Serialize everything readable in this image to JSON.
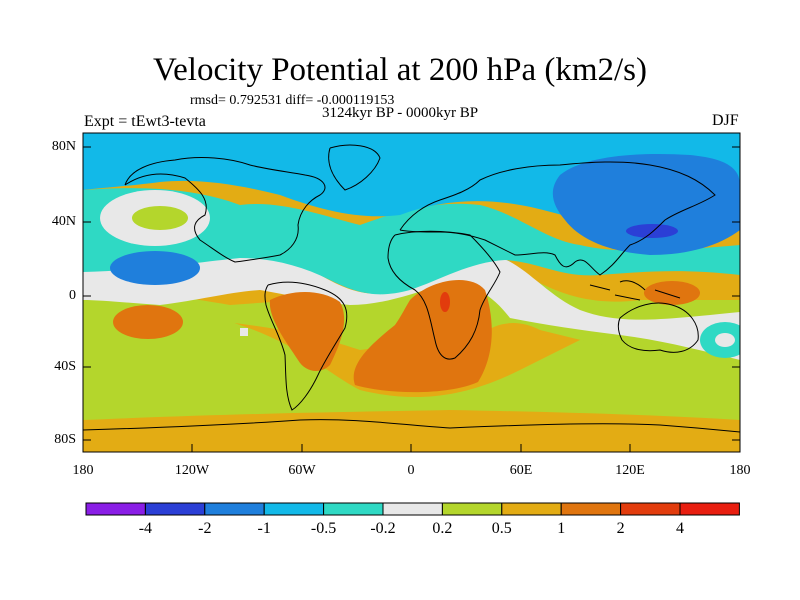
{
  "title": "Velocity Potential at 200 hPa (km2/s)",
  "rmsd_line": "rmsd= 0.792531 diff= -0.000119153",
  "period": "3124kyr BP - 0000kyr BP",
  "experiment": "Expt = tEwt3-tevta",
  "season": "DJF",
  "y_axis": {
    "labels": [
      "80N",
      "40N",
      "0",
      "40S",
      "80S"
    ]
  },
  "x_axis": {
    "labels": [
      "180",
      "120W",
      "60W",
      "0",
      "60E",
      "120E",
      "180"
    ]
  },
  "colorbar": {
    "levels": [
      "-4",
      "-2",
      "-1",
      "-0.5",
      "-0.2",
      "0.2",
      "0.5",
      "1",
      "2",
      "4"
    ],
    "colors": [
      "#8a1ee6",
      "#2b3fd6",
      "#1f7fdc",
      "#12b9e8",
      "#2fd9c4",
      "#e8e8e8",
      "#b4d62c",
      "#e3ac14",
      "#e0750f",
      "#e23c0d",
      "#e81e10"
    ]
  },
  "field_colors": {
    "ocean_cyan": "#12b9e8",
    "teal": "#2fd9c4",
    "blue": "#1f7fdc",
    "dark_blue": "#2b3fd6",
    "white": "#e8e8e8",
    "lime": "#b4d62c",
    "gold": "#e3ac14",
    "orange": "#e0750f",
    "red": "#e23c0d"
  }
}
